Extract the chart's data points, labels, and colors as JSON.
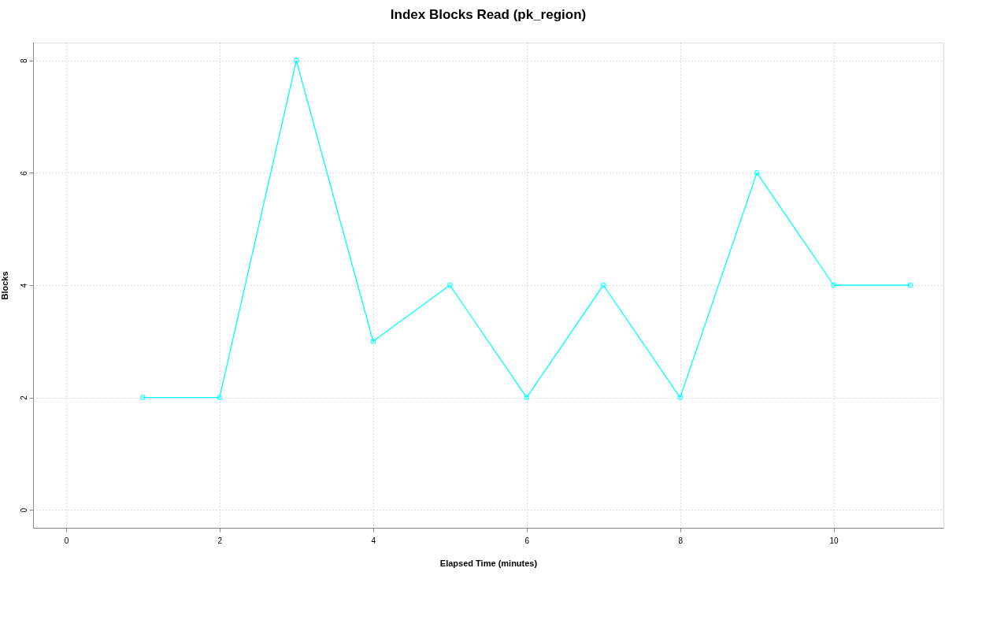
{
  "chart_data": {
    "type": "line",
    "title": "Index Blocks Read (pk_region)",
    "xlabel": "Elapsed Time (minutes)",
    "ylabel": "Blocks",
    "x": [
      1,
      2,
      3,
      4,
      5,
      6,
      7,
      8,
      9,
      10,
      11
    ],
    "series": [
      {
        "color": "#00ffff",
        "values": [
          2,
          2,
          8,
          3,
          4,
          2,
          4,
          2,
          6,
          4,
          4
        ]
      }
    ],
    "xlim": [
      -0.43,
      11.43
    ],
    "xticks": [
      0,
      2,
      4,
      6,
      8,
      10
    ],
    "ylim": [
      -0.32,
      8.32
    ],
    "yticks": [
      0,
      2,
      4,
      6,
      8
    ],
    "grid": true,
    "marker": "circle",
    "line_style": "solid"
  }
}
